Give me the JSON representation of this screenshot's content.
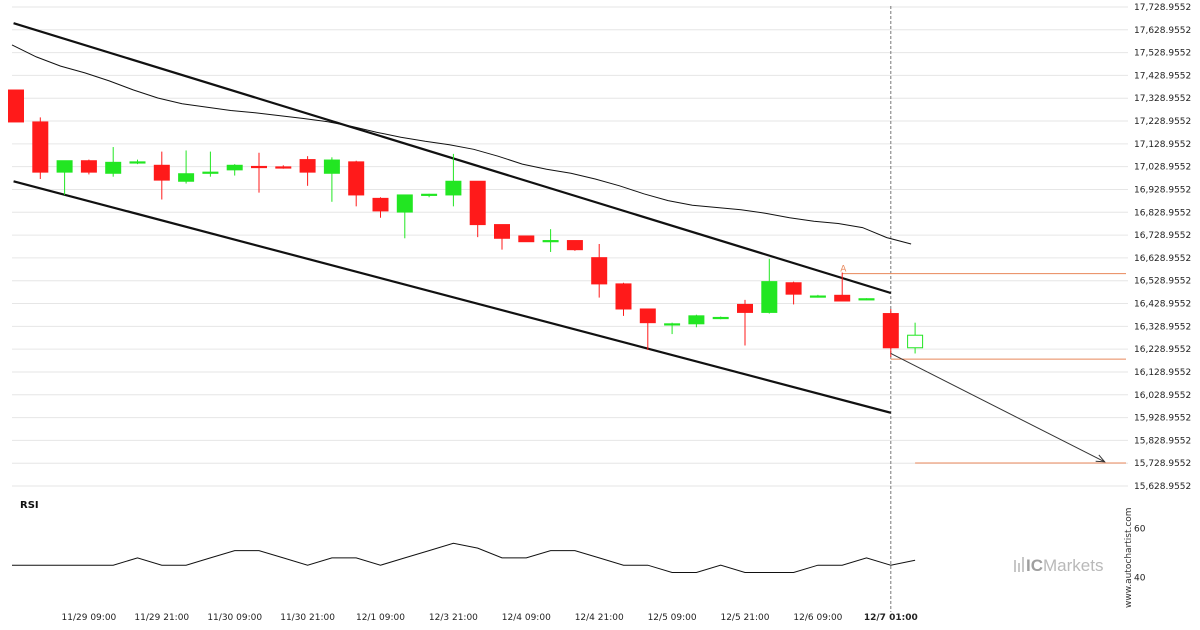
{
  "chart_data": {
    "type": "candlestick",
    "colors": {
      "up": "#22e622",
      "down": "#ff1a1a",
      "channel": "#111111",
      "moving_average": "#111111",
      "level_line": "#e8875a",
      "forecast_arrow": "#333333",
      "grid": "#e6e6e6",
      "cursor": "#777777"
    },
    "price_axis": {
      "range": [
        15628.9552,
        17728.9552
      ],
      "step": 100,
      "tick_labels": [
        "17,728.9552",
        "17,628.9552",
        "17,528.9552",
        "17,428.9552",
        "17,328.9552",
        "17,228.9552",
        "17,128.9552",
        "17,028.9552",
        "16,928.9552",
        "16,828.9552",
        "16,728.9552",
        "16,628.9552",
        "16,528.9552",
        "16,428.9552",
        "16,328.9552",
        "16,228.9552",
        "16,128.9552",
        "16,028.9552",
        "15,928.9552",
        "15,828.9552",
        "15,728.9552",
        "15,628.9552"
      ]
    },
    "time_axis": {
      "bar_interval_hours": 3,
      "tick_labels": [
        {
          "label": "11/29 09:00",
          "bar": 3,
          "bold": false
        },
        {
          "label": "11/29 21:00",
          "bar": 6,
          "bold": false
        },
        {
          "label": "11/30 09:00",
          "bar": 9,
          "bold": false
        },
        {
          "label": "11/30 21:00",
          "bar": 12,
          "bold": false
        },
        {
          "label": "12/1 09:00",
          "bar": 15,
          "bold": false
        },
        {
          "label": "12/3 21:00",
          "bar": 18,
          "bold": false
        },
        {
          "label": "12/4 09:00",
          "bar": 21,
          "bold": false
        },
        {
          "label": "12/4 21:00",
          "bar": 24,
          "bold": false
        },
        {
          "label": "12/5 09:00",
          "bar": 27,
          "bold": false
        },
        {
          "label": "12/5 21:00",
          "bar": 30,
          "bold": false
        },
        {
          "label": "12/6 09:00",
          "bar": 33,
          "bold": false
        },
        {
          "label": "12/7 01:00",
          "bar": 36,
          "bold": true
        }
      ]
    },
    "candles": [
      {
        "o": 17365,
        "h": 17365,
        "l": 17225,
        "c": 17225
      },
      {
        "o": 17225,
        "h": 17245,
        "l": 16975,
        "c": 17005
      },
      {
        "o": 17005,
        "h": 17055,
        "l": 16905,
        "c": 17055
      },
      {
        "o": 17055,
        "h": 17060,
        "l": 16995,
        "c": 17005
      },
      {
        "o": 17000,
        "h": 17115,
        "l": 16985,
        "c": 17048
      },
      {
        "o": 17045,
        "h": 17060,
        "l": 17040,
        "c": 17050
      },
      {
        "o": 17035,
        "h": 17095,
        "l": 16885,
        "c": 16970
      },
      {
        "o": 16965,
        "h": 17100,
        "l": 16955,
        "c": 16998
      },
      {
        "o": 17000,
        "h": 17095,
        "l": 16985,
        "c": 17005
      },
      {
        "o": 17015,
        "h": 17040,
        "l": 16990,
        "c": 17035
      },
      {
        "o": 17030,
        "h": 17090,
        "l": 16915,
        "c": 17025
      },
      {
        "o": 17028,
        "h": 17035,
        "l": 17020,
        "c": 17026
      },
      {
        "o": 17060,
        "h": 17075,
        "l": 16945,
        "c": 17005
      },
      {
        "o": 17000,
        "h": 17070,
        "l": 16875,
        "c": 17058
      },
      {
        "o": 17050,
        "h": 17055,
        "l": 16855,
        "c": 16905
      },
      {
        "o": 16890,
        "h": 16895,
        "l": 16805,
        "c": 16835
      },
      {
        "o": 16830,
        "h": 16905,
        "l": 16715,
        "c": 16905
      },
      {
        "o": 16905,
        "h": 16910,
        "l": 16895,
        "c": 16908
      },
      {
        "o": 16905,
        "h": 17085,
        "l": 16855,
        "c": 16965
      },
      {
        "o": 16965,
        "h": 16965,
        "l": 16720,
        "c": 16775
      },
      {
        "o": 16775,
        "h": 16775,
        "l": 16665,
        "c": 16715
      },
      {
        "o": 16725,
        "h": 16725,
        "l": 16700,
        "c": 16700
      },
      {
        "o": 16705,
        "h": 16755,
        "l": 16655,
        "c": 16705
      },
      {
        "o": 16705,
        "h": 16705,
        "l": 16660,
        "c": 16665
      },
      {
        "o": 16630,
        "h": 16690,
        "l": 16455,
        "c": 16515
      },
      {
        "o": 16515,
        "h": 16520,
        "l": 16375,
        "c": 16405
      },
      {
        "o": 16405,
        "h": 16405,
        "l": 16225,
        "c": 16345
      },
      {
        "o": 16340,
        "h": 16345,
        "l": 16295,
        "c": 16340
      },
      {
        "o": 16340,
        "h": 16380,
        "l": 16325,
        "c": 16375
      },
      {
        "o": 16365,
        "h": 16372,
        "l": 16360,
        "c": 16368
      },
      {
        "o": 16425,
        "h": 16445,
        "l": 16245,
        "c": 16390
      },
      {
        "o": 16390,
        "h": 16625,
        "l": 16385,
        "c": 16525
      },
      {
        "o": 16520,
        "h": 16525,
        "l": 16425,
        "c": 16470
      },
      {
        "o": 16462,
        "h": 16467,
        "l": 16455,
        "c": 16462
      },
      {
        "o": 16465,
        "h": 16565,
        "l": 16440,
        "c": 16440
      },
      {
        "o": 16448,
        "h": 16452,
        "l": 16444,
        "c": 16450
      },
      {
        "o": 16385,
        "h": 16405,
        "l": 16195,
        "c": 16235
      },
      {
        "o": 16235,
        "h": 16345,
        "l": 16210,
        "c": 16290
      }
    ],
    "moving_average": [
      17585,
      17520,
      17480,
      17450,
      17415,
      17380,
      17340,
      17315,
      17298,
      17285,
      17275,
      17268,
      17255,
      17240,
      17215,
      17185,
      17158,
      17140,
      17125,
      17100,
      17060,
      17020,
      17000,
      16975,
      16940,
      16890,
      16855,
      16830,
      16805,
      16780,
      16760,
      16735,
      16710,
      16680,
      16660,
      16645,
      16620,
      16605,
      16580,
      16555,
      16535,
      16505,
      16475,
      16440,
      16385,
      16330,
      16290,
      16265,
      16245,
      16215,
      16195,
      16180,
      16150,
      16130,
      16115,
      16100,
      16082,
      16068,
      16050,
      16033,
      16015,
      15998,
      15980,
      15960,
      15933,
      15905,
      15880,
      15858,
      15840,
      15825,
      15805,
      15788,
      15770,
      15750,
      15725
    ],
    "ma_visible": [
      17563,
      17510,
      17470,
      17440,
      17405,
      17365,
      17330,
      17305,
      17290,
      17275,
      17265,
      17253,
      17240,
      17226,
      17205,
      17180,
      17158,
      17140,
      17125,
      17105,
      17075,
      17040,
      17018,
      17000,
      16975,
      16945,
      16910,
      16880,
      16860,
      16850,
      16840,
      16825,
      16805,
      16790,
      16780,
      16762,
      16718,
      16690
    ],
    "channel_upper": {
      "from": {
        "bar": -0.1,
        "price": 17658
      },
      "to": {
        "bar": 36,
        "price": 16475
      }
    },
    "channel_lower": {
      "from": {
        "bar": -0.1,
        "price": 16965
      },
      "to": {
        "bar": 36,
        "price": 15950
      }
    },
    "resistance_level": {
      "price": 16560,
      "from_bar": 34,
      "to_bar": 46
    },
    "breakout_level": {
      "price": 16185,
      "from_bar": 36,
      "to_bar": 46
    },
    "target_level": {
      "price": 15730,
      "from_bar": 37,
      "to_bar": 46
    },
    "forecast_arrow": {
      "from": {
        "bar": 36,
        "price": 16210
      },
      "to": {
        "bar": 44.8,
        "price": 15735
      }
    },
    "pattern_point_label": "A",
    "rsi": {
      "label": "RSI",
      "range": [
        34,
        66
      ],
      "tick_labels": [
        "60",
        "40"
      ],
      "tick_values": [
        60,
        40
      ],
      "values": [
        45,
        45,
        45,
        45,
        45,
        48,
        45,
        45,
        48,
        51,
        51,
        48,
        45,
        48,
        48,
        45,
        48,
        51,
        54,
        52,
        48,
        48,
        51,
        51,
        48,
        45,
        45,
        42,
        42,
        45,
        42,
        42,
        42,
        45,
        45,
        48,
        45,
        47
      ]
    }
  },
  "watermark": {
    "site": "www.autochartist.com",
    "brand_prefix": "IC",
    "brand_suffix": "Markets"
  }
}
